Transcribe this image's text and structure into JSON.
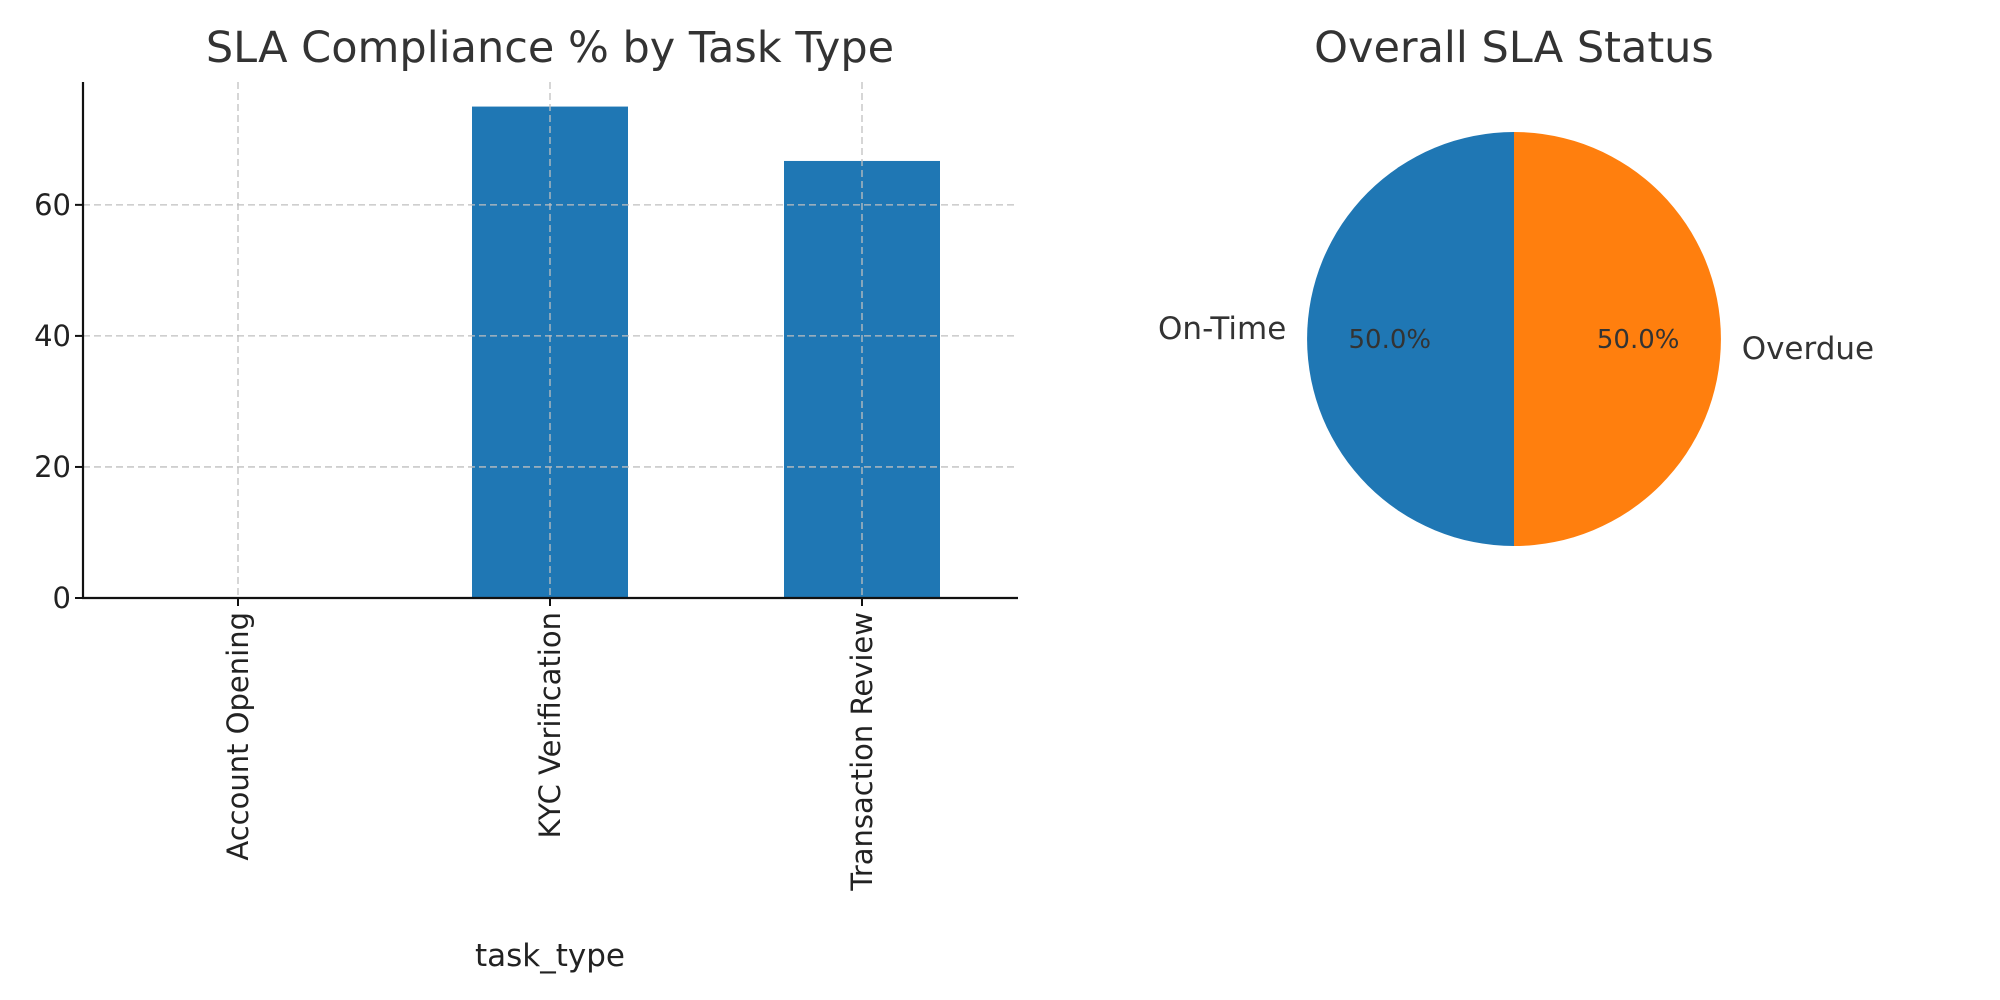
{
  "chart_data": [
    {
      "type": "bar",
      "title": "SLA Compliance % by Task Type",
      "xlabel": "task_type",
      "ylabel": "",
      "categories": [
        "Account Opening",
        "KYC Verification",
        "Transaction Review"
      ],
      "values": [
        0,
        75,
        66.7
      ],
      "ylim": [
        0,
        78.75
      ],
      "yticks": [
        0,
        20,
        40,
        60
      ],
      "grid": true,
      "color": "#1f77b4"
    },
    {
      "type": "pie",
      "title": "Overall SLA Status",
      "labels": [
        "On-Time",
        "Overdue"
      ],
      "values": [
        50,
        50
      ],
      "pct_labels": [
        "50.0%",
        "50.0%"
      ],
      "colors": [
        "#1f77b4",
        "#ff7f0e"
      ]
    }
  ]
}
